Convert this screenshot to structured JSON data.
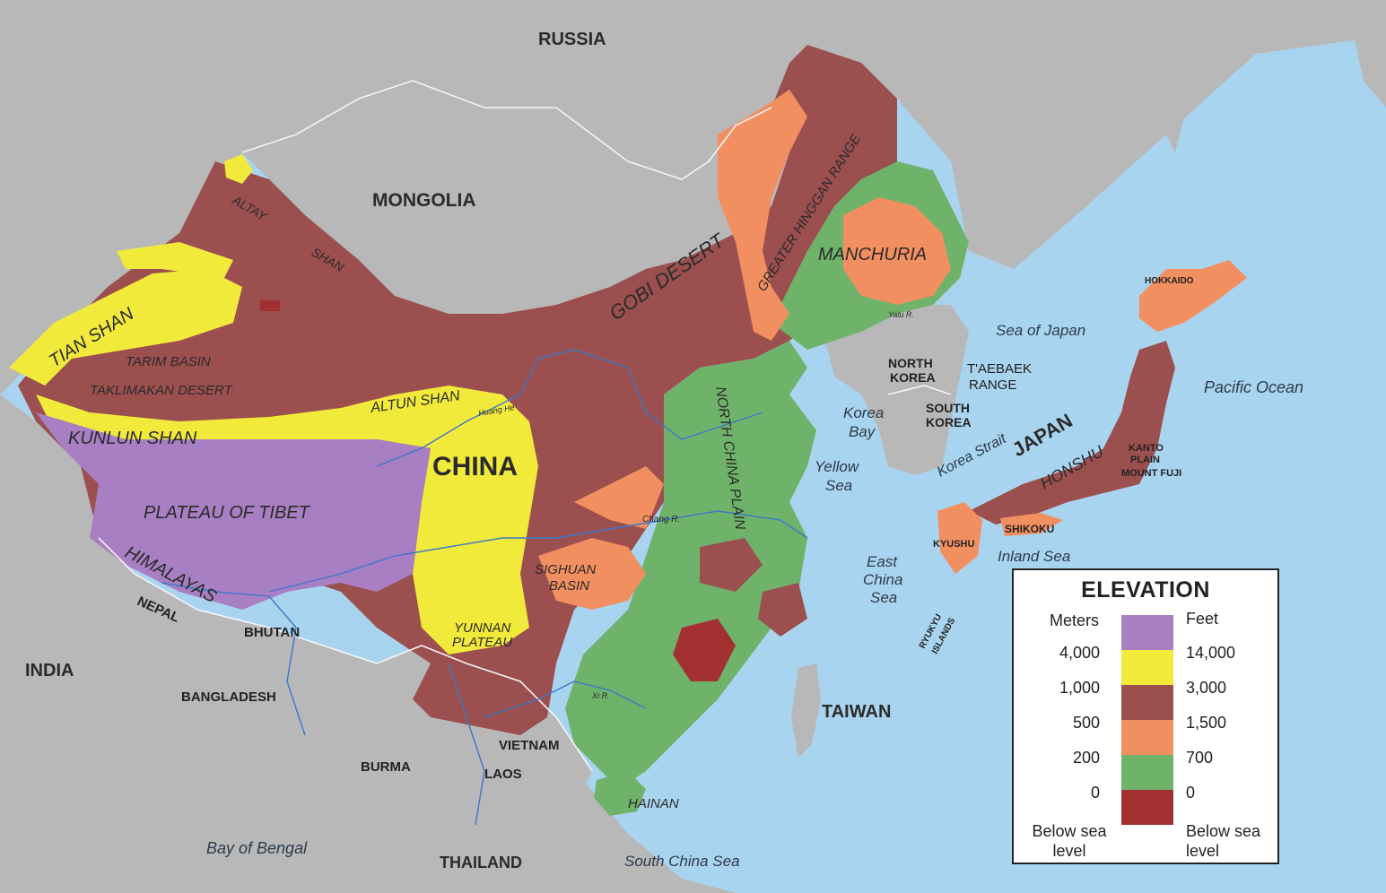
{
  "colors": {
    "water": "#a9d4ef",
    "neighbor_land": "#b8b8b8",
    "border_line": "#f4f4f4",
    "river": "#3a78c8",
    "elev_4000": "#a87fc2",
    "elev_1000": "#f1ea3b",
    "elev_500": "#9c4f4f",
    "elev_200": "#f28f61",
    "elev_0": "#6fb36b",
    "elev_below": "#a33030"
  },
  "labels": {
    "countries": {
      "russia": "RUSSIA",
      "mongolia": "MONGOLIA",
      "china": "CHINA",
      "india": "INDIA",
      "nepal": "NEPAL",
      "bhutan": "BHUTAN",
      "bangladesh": "BANGLADESH",
      "burma": "BURMA",
      "laos": "LAOS",
      "vietnam": "VIETNAM",
      "thailand": "THAILAND",
      "taiwan": "TAIWAN",
      "japan": "JAPAN",
      "north_korea_1": "NORTH",
      "north_korea_2": "KOREA",
      "south_korea_1": "SOUTH",
      "south_korea_2": "KOREA"
    },
    "regions": {
      "altay": "ALTAY",
      "shan": "SHAN",
      "tian_shan": "TIAN SHAN",
      "tarim_basin": "TARIM BASIN",
      "taklimakan": "TAKLIMAKAN DESERT",
      "kunlun_shan": "KUNLUN SHAN",
      "altun_shan": "ALTUN SHAN",
      "plateau_tibet": "PLATEAU OF TIBET",
      "himalayas": "HIMALAYAS",
      "gobi": "GOBI DESERT",
      "greater_hinggan": "GREATER HINGGAN RANGE",
      "manchuria": "MANCHURIA",
      "north_china_plain": "NORTH CHINA PLAIN",
      "sichuan_1": "SIGHUAN",
      "sichuan_2": "BASIN",
      "yunnan_1": "YUNNAN",
      "yunnan_2": "PLATEAU",
      "hainan": "HAINAN",
      "taebaek_1": "T'AEBAEK",
      "taebaek_2": "RANGE",
      "hokkaido": "HOKKAIDO",
      "honshu": "HONSHU",
      "shikoku": "SHIKOKU",
      "kyushu": "KYUSHU",
      "kanto_1": "KANTO",
      "kanto_2": "PLAIN",
      "mount_fuji": "MOUNT FUJI",
      "ryukyu_1": "RYUKYU",
      "ryukyu_2": "ISLANDS"
    },
    "rivers": {
      "huang": "Huang He",
      "chang": "Chang R.",
      "xi": "Xi R.",
      "yalu": "Yalu R."
    },
    "water": {
      "sea_of_japan": "Sea of Japan",
      "pacific": "Pacific Ocean",
      "korea_bay_1": "Korea",
      "korea_bay_2": "Bay",
      "yellow_sea_1": "Yellow",
      "yellow_sea_2": "Sea",
      "korea_strait": "Korea Strait",
      "inland_sea": "Inland Sea",
      "east_china_1": "East",
      "east_china_2": "China",
      "east_china_3": "Sea",
      "bay_of_bengal": "Bay of Bengal",
      "south_china_sea": "South China Sea"
    }
  },
  "legend": {
    "title": "ELEVATION",
    "meters_header": "Meters",
    "feet_header": "Feet",
    "rows": [
      {
        "meters": "4,000",
        "feet": "14,000"
      },
      {
        "meters": "1,000",
        "feet": "3,000"
      },
      {
        "meters": "500",
        "feet": "1,500"
      },
      {
        "meters": "200",
        "feet": "700"
      },
      {
        "meters": "0",
        "feet": "0"
      }
    ],
    "below_meters_1": "Below sea",
    "below_meters_2": "level",
    "below_feet_1": "Below sea",
    "below_feet_2": "level"
  }
}
